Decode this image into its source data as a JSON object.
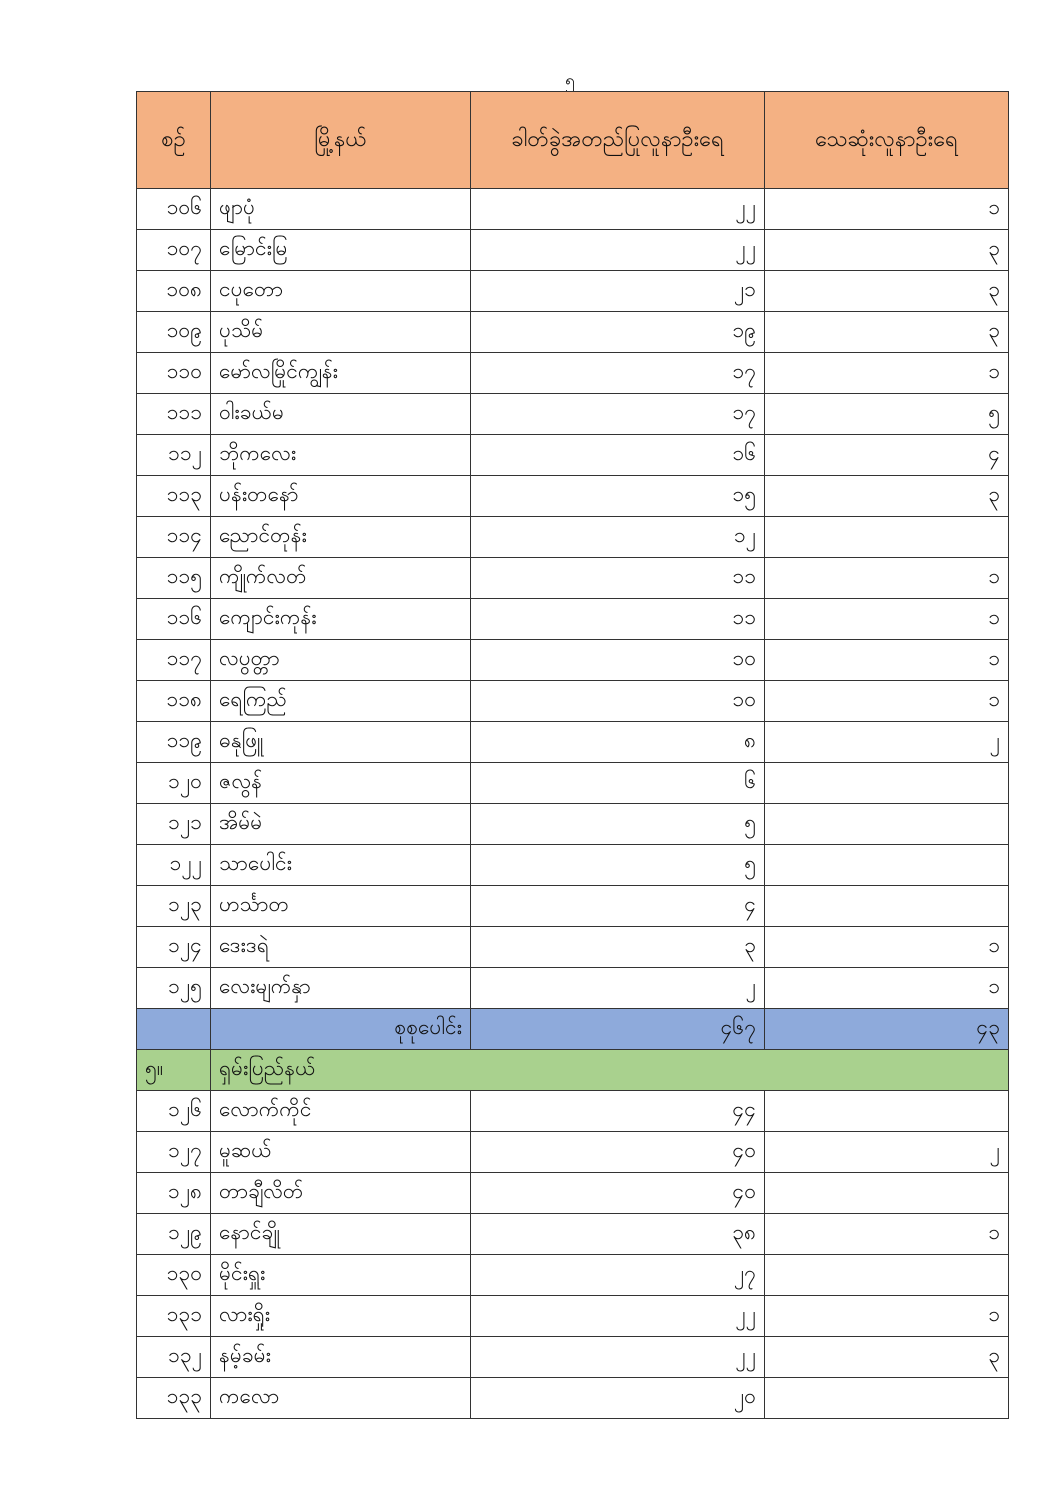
{
  "page_number": "၅",
  "table": {
    "headers": [
      "စဉ်",
      "မြို့နယ်",
      "ခါတ်ခွဲအတည်ပြုလူနာဦးရေ",
      "သေဆုံးလူနာဦးရေ"
    ],
    "rows_a": [
      {
        "no": "၁၀၆",
        "name": "ဖျာပုံ",
        "confirmed": "၂၂",
        "deaths": "၁"
      },
      {
        "no": "၁၀၇",
        "name": "မြောင်းမြ",
        "confirmed": "၂၂",
        "deaths": "၃"
      },
      {
        "no": "၁၀၈",
        "name": "ငပုတော",
        "confirmed": "၂၁",
        "deaths": "၃"
      },
      {
        "no": "၁၀၉",
        "name": "ပုသိမ်",
        "confirmed": "၁၉",
        "deaths": "၃"
      },
      {
        "no": "၁၁၀",
        "name": "မော်လမြိုင်ကျွန်း",
        "confirmed": "၁၇",
        "deaths": "၁"
      },
      {
        "no": "၁၁၁",
        "name": "ဝါးခယ်မ",
        "confirmed": "၁၇",
        "deaths": "၅"
      },
      {
        "no": "၁၁၂",
        "name": "ဘိုကလေး",
        "confirmed": "၁၆",
        "deaths": "၄"
      },
      {
        "no": "၁၁၃",
        "name": "ပန်းတနော်",
        "confirmed": "၁၅",
        "deaths": "၃"
      },
      {
        "no": "၁၁၄",
        "name": "ညောင်တုန်း",
        "confirmed": "၁၂",
        "deaths": ""
      },
      {
        "no": "၁၁၅",
        "name": "ကျိုက်လတ်",
        "confirmed": "၁၁",
        "deaths": "၁"
      },
      {
        "no": "၁၁၆",
        "name": "ကျောင်းကုန်း",
        "confirmed": "၁၁",
        "deaths": "၁"
      },
      {
        "no": "၁၁၇",
        "name": "လပွတ္တာ",
        "confirmed": "၁၀",
        "deaths": "၁"
      },
      {
        "no": "၁၁၈",
        "name": "ရေကြည်",
        "confirmed": "၁၀",
        "deaths": "၁"
      },
      {
        "no": "၁၁၉",
        "name": "ဓနုဖြူ",
        "confirmed": "၈",
        "deaths": "၂"
      },
      {
        "no": "၁၂၀",
        "name": "ဇလွန်",
        "confirmed": "၆",
        "deaths": ""
      },
      {
        "no": "၁၂၁",
        "name": "အိမ်မဲ",
        "confirmed": "၅",
        "deaths": ""
      },
      {
        "no": "၁၂၂",
        "name": "သာပေါင်း",
        "confirmed": "၅",
        "deaths": ""
      },
      {
        "no": "၁၂၃",
        "name": "ဟင်္သာတ",
        "confirmed": "၄",
        "deaths": ""
      },
      {
        "no": "၁၂၄",
        "name": "ဒေးဒရဲ",
        "confirmed": "၃",
        "deaths": "၁"
      },
      {
        "no": "၁၂၅",
        "name": "လေးမျက်နှာ",
        "confirmed": "၂",
        "deaths": "၁"
      }
    ],
    "total": {
      "label": "စုစုပေါင်း",
      "confirmed": "၄၆၇",
      "deaths": "၄၃"
    },
    "section": {
      "no": "၅။",
      "name": "ရှမ်းပြည်နယ်"
    },
    "rows_b": [
      {
        "no": "၁၂၆",
        "name": "လောက်ကိုင်",
        "confirmed": "၄၄",
        "deaths": ""
      },
      {
        "no": "၁၂၇",
        "name": "မူဆယ်",
        "confirmed": "၄၀",
        "deaths": "၂"
      },
      {
        "no": "၁၂၈",
        "name": "တာချီလိတ်",
        "confirmed": "၄၀",
        "deaths": ""
      },
      {
        "no": "၁၂၉",
        "name": "နောင်ချို",
        "confirmed": "၃၈",
        "deaths": "၁"
      },
      {
        "no": "၁၃၀",
        "name": "မိုင်းရှူး",
        "confirmed": "၂၇",
        "deaths": ""
      },
      {
        "no": "၁၃၁",
        "name": "လားရှိုး",
        "confirmed": "၂၂",
        "deaths": "၁"
      },
      {
        "no": "၁၃၂",
        "name": "နမ့်ခမ်း",
        "confirmed": "၂၂",
        "deaths": "၃"
      },
      {
        "no": "၁၃၃",
        "name": "ကလော",
        "confirmed": "၂၀",
        "deaths": ""
      }
    ],
    "colors": {
      "header": "#f4b183",
      "total": "#8eaadb",
      "section": "#a9d18e"
    }
  }
}
